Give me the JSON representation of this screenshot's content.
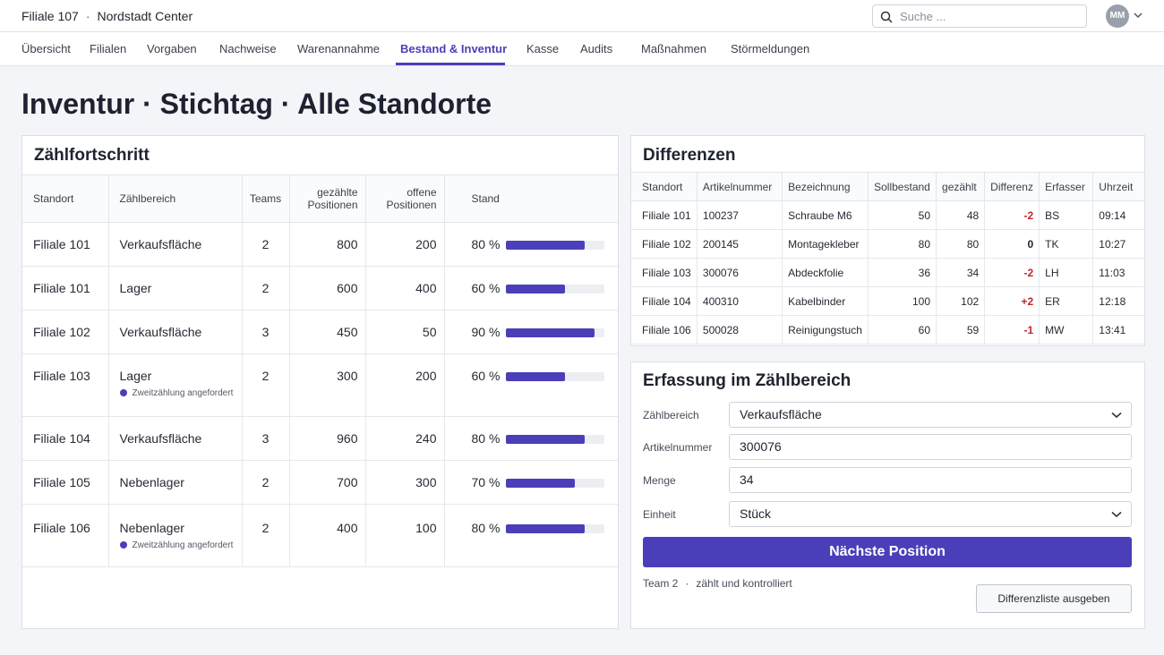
{
  "header": {
    "store_id": "Filiale 107",
    "store_name": "Nordstadt Center",
    "search_placeholder": "Suche ...",
    "avatar_initials": "MM"
  },
  "nav": {
    "tabs": [
      {
        "label": "Übersicht",
        "active": false
      },
      {
        "label": "Filialen",
        "active": false
      },
      {
        "label": "Vorgaben",
        "active": false
      },
      {
        "label": "Nachweise",
        "active": false
      },
      {
        "label": "Warenannahme",
        "active": false
      },
      {
        "label": "Bestand & Inventur",
        "active": true
      },
      {
        "label": "Kasse",
        "active": false
      },
      {
        "label": "Audits",
        "active": false
      },
      {
        "label": "Maßnahmen",
        "active": false
      },
      {
        "label": "Störmeldungen",
        "active": false
      }
    ]
  },
  "page_title": "Inventur · Stichtag · Alle Standorte",
  "progress": {
    "title": "Zählfortschritt",
    "headers": {
      "standort": "Standort",
      "bereich": "Zählbereich",
      "teams": "Teams",
      "gezaehlt_1": "gezählte",
      "gezaehlt_2": "Positionen",
      "offen_1": "offene",
      "offen_2": "Positionen",
      "stand": "Stand"
    },
    "rows": [
      {
        "standort": "Filiale 101",
        "bereich": "Verkaufsfläche",
        "note": "",
        "teams": "2",
        "gezaehlt": "800",
        "offen": "200",
        "stand": "80 %",
        "progress": 0.8
      },
      {
        "standort": "Filiale 101",
        "bereich": "Lager",
        "note": "",
        "teams": "2",
        "gezaehlt": "600",
        "offen": "400",
        "stand": "60 %",
        "progress": 0.6
      },
      {
        "standort": "Filiale 102",
        "bereich": "Verkaufsfläche",
        "note": "",
        "teams": "3",
        "gezaehlt": "450",
        "offen": "50",
        "stand": "90 %",
        "progress": 0.9
      },
      {
        "standort": "Filiale 103",
        "bereich": "Lager",
        "note": "Zweitzählung angefordert",
        "teams": "2",
        "gezaehlt": "300",
        "offen": "200",
        "stand": "60 %",
        "progress": 0.6
      },
      {
        "standort": "Filiale 104",
        "bereich": "Verkaufsfläche",
        "note": "",
        "teams": "3",
        "gezaehlt": "960",
        "offen": "240",
        "stand": "80 %",
        "progress": 0.8
      },
      {
        "standort": "Filiale 105",
        "bereich": "Nebenlager",
        "note": "",
        "teams": "2",
        "gezaehlt": "700",
        "offen": "300",
        "stand": "70 %",
        "progress": 0.7
      },
      {
        "standort": "Filiale 106",
        "bereich": "Nebenlager",
        "note": "Zweitzählung angefordert",
        "teams": "2",
        "gezaehlt": "400",
        "offen": "100",
        "stand": "80 %",
        "progress": 0.8
      }
    ]
  },
  "differences": {
    "title": "Differenzen",
    "headers": [
      "Standort",
      "Artikelnummer",
      "Bezeichnung",
      "Sollbestand",
      "gezählt",
      "Differenz",
      "Erfasser",
      "Uhrzeit"
    ],
    "rows": [
      {
        "standort": "Filiale 101",
        "artikel": "100237",
        "bezeichnung": "Schraube M6",
        "soll": "50",
        "gezaehlt": "48",
        "differenz": "-2",
        "erfasser": "BS",
        "uhrzeit": "09:14"
      },
      {
        "standort": "Filiale 102",
        "artikel": "200145",
        "bezeichnung": "Montagekleber",
        "soll": "80",
        "gezaehlt": "80",
        "differenz": "0",
        "erfasser": "TK",
        "uhrzeit": "10:27"
      },
      {
        "standort": "Filiale 103",
        "artikel": "300076",
        "bezeichnung": "Abdeckfolie",
        "soll": "36",
        "gezaehlt": "34",
        "differenz": "-2",
        "erfasser": "LH",
        "uhrzeit": "11:03"
      },
      {
        "standort": "Filiale 104",
        "artikel": "400310",
        "bezeichnung": "Kabelbinder",
        "soll": "100",
        "gezaehlt": "102",
        "differenz": "+2",
        "erfasser": "ER",
        "uhrzeit": "12:18"
      },
      {
        "standort": "Filiale 106",
        "artikel": "500028",
        "bezeichnung": "Reinigungstuch",
        "soll": "60",
        "gezaehlt": "59",
        "differenz": "-1",
        "erfasser": "MW",
        "uhrzeit": "13:41"
      }
    ]
  },
  "form": {
    "title": "Erfassung im Zählbereich",
    "zaehlbereich_label": "Zählbereich",
    "zaehlbereich_value": "Verkaufsfläche",
    "artikel_label": "Artikelnummer",
    "artikel_value": "300076",
    "menge_label": "Menge",
    "menge_value": "34",
    "einheit_label": "Einheit",
    "einheit_value": "Stück",
    "next_button": "Nächste Position",
    "team": "Team 2",
    "team_status": "zählt und kontrolliert",
    "diff_button": "Differenzliste ausgeben"
  },
  "colors": {
    "accent": "#4a3fb8",
    "negative": "#c0262c",
    "background": "#f4f5f8"
  }
}
